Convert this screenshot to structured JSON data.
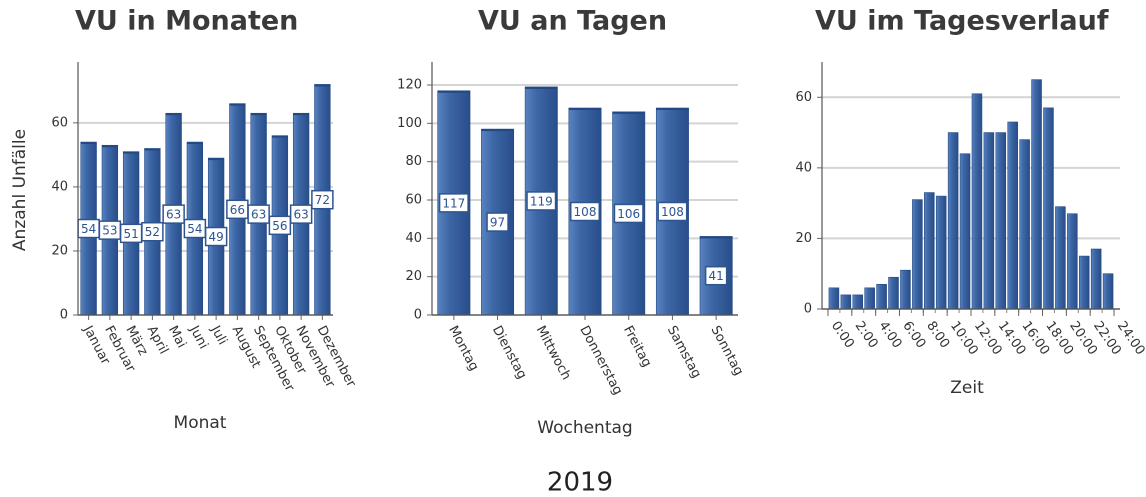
{
  "chart_data": [
    {
      "type": "bar",
      "title": "VU in Monaten",
      "xlabel": "Monat",
      "ylabel": "Anzahl Unfälle",
      "categories": [
        "Januar",
        "Februar",
        "März",
        "April",
        "Mai",
        "Juni",
        "Juli",
        "August",
        "September",
        "Oktober",
        "November",
        "Dezember"
      ],
      "values": [
        54,
        53,
        51,
        52,
        63,
        54,
        49,
        66,
        63,
        56,
        63,
        72
      ],
      "color": "#3b64a3",
      "ylim": [
        0,
        79
      ],
      "yticks": [
        0,
        20,
        40,
        60
      ],
      "grid": true,
      "data_labels": true
    },
    {
      "type": "bar",
      "title": "VU an Tagen",
      "xlabel": "Wochentag",
      "categories": [
        "Montag",
        "Dienstag",
        "Mittwoch",
        "Donnerstag",
        "Freitag",
        "Samstag",
        "Sonntag"
      ],
      "values": [
        117,
        97,
        119,
        108,
        106,
        108,
        41
      ],
      "color": "#3b64a3",
      "ylim": [
        0,
        132
      ],
      "yticks": [
        0,
        20,
        40,
        60,
        80,
        100,
        120
      ],
      "grid": true,
      "data_labels": true
    },
    {
      "type": "histogram",
      "title": "VU im Tagesverlauf",
      "xlabel": "Zeit",
      "bins": [
        0,
        1,
        2,
        3,
        4,
        5,
        6,
        7,
        8,
        9,
        10,
        11,
        12,
        13,
        14,
        15,
        16,
        17,
        18,
        19,
        20,
        21,
        22,
        23,
        24
      ],
      "values": [
        6,
        4,
        4,
        6,
        7,
        9,
        11,
        31,
        33,
        32,
        50,
        44,
        61,
        50,
        50,
        53,
        48,
        65,
        57,
        29,
        27,
        15,
        17,
        10
      ],
      "color": "#3b64a3",
      "xlim": [
        -0.5,
        24.5
      ],
      "xticks": [
        {
          "value": 0,
          "label": "0:00"
        },
        {
          "value": 2,
          "label": "2:00"
        },
        {
          "value": 4,
          "label": "4:00"
        },
        {
          "value": 6,
          "label": "6:00"
        },
        {
          "value": 8,
          "label": "8:00"
        },
        {
          "value": 10,
          "label": "10:00"
        },
        {
          "value": 12,
          "label": "12:00"
        },
        {
          "value": 14,
          "label": "14:00"
        },
        {
          "value": 16,
          "label": "16:00"
        },
        {
          "value": 18,
          "label": "18:00"
        },
        {
          "value": 20,
          "label": "20:00"
        },
        {
          "value": 22,
          "label": "22:00"
        },
        {
          "value": 24,
          "label": "24:00"
        }
      ],
      "ylim": [
        0,
        70
      ],
      "yticks": [
        0,
        20,
        40,
        60
      ],
      "grid": true
    }
  ],
  "footer": "2019"
}
